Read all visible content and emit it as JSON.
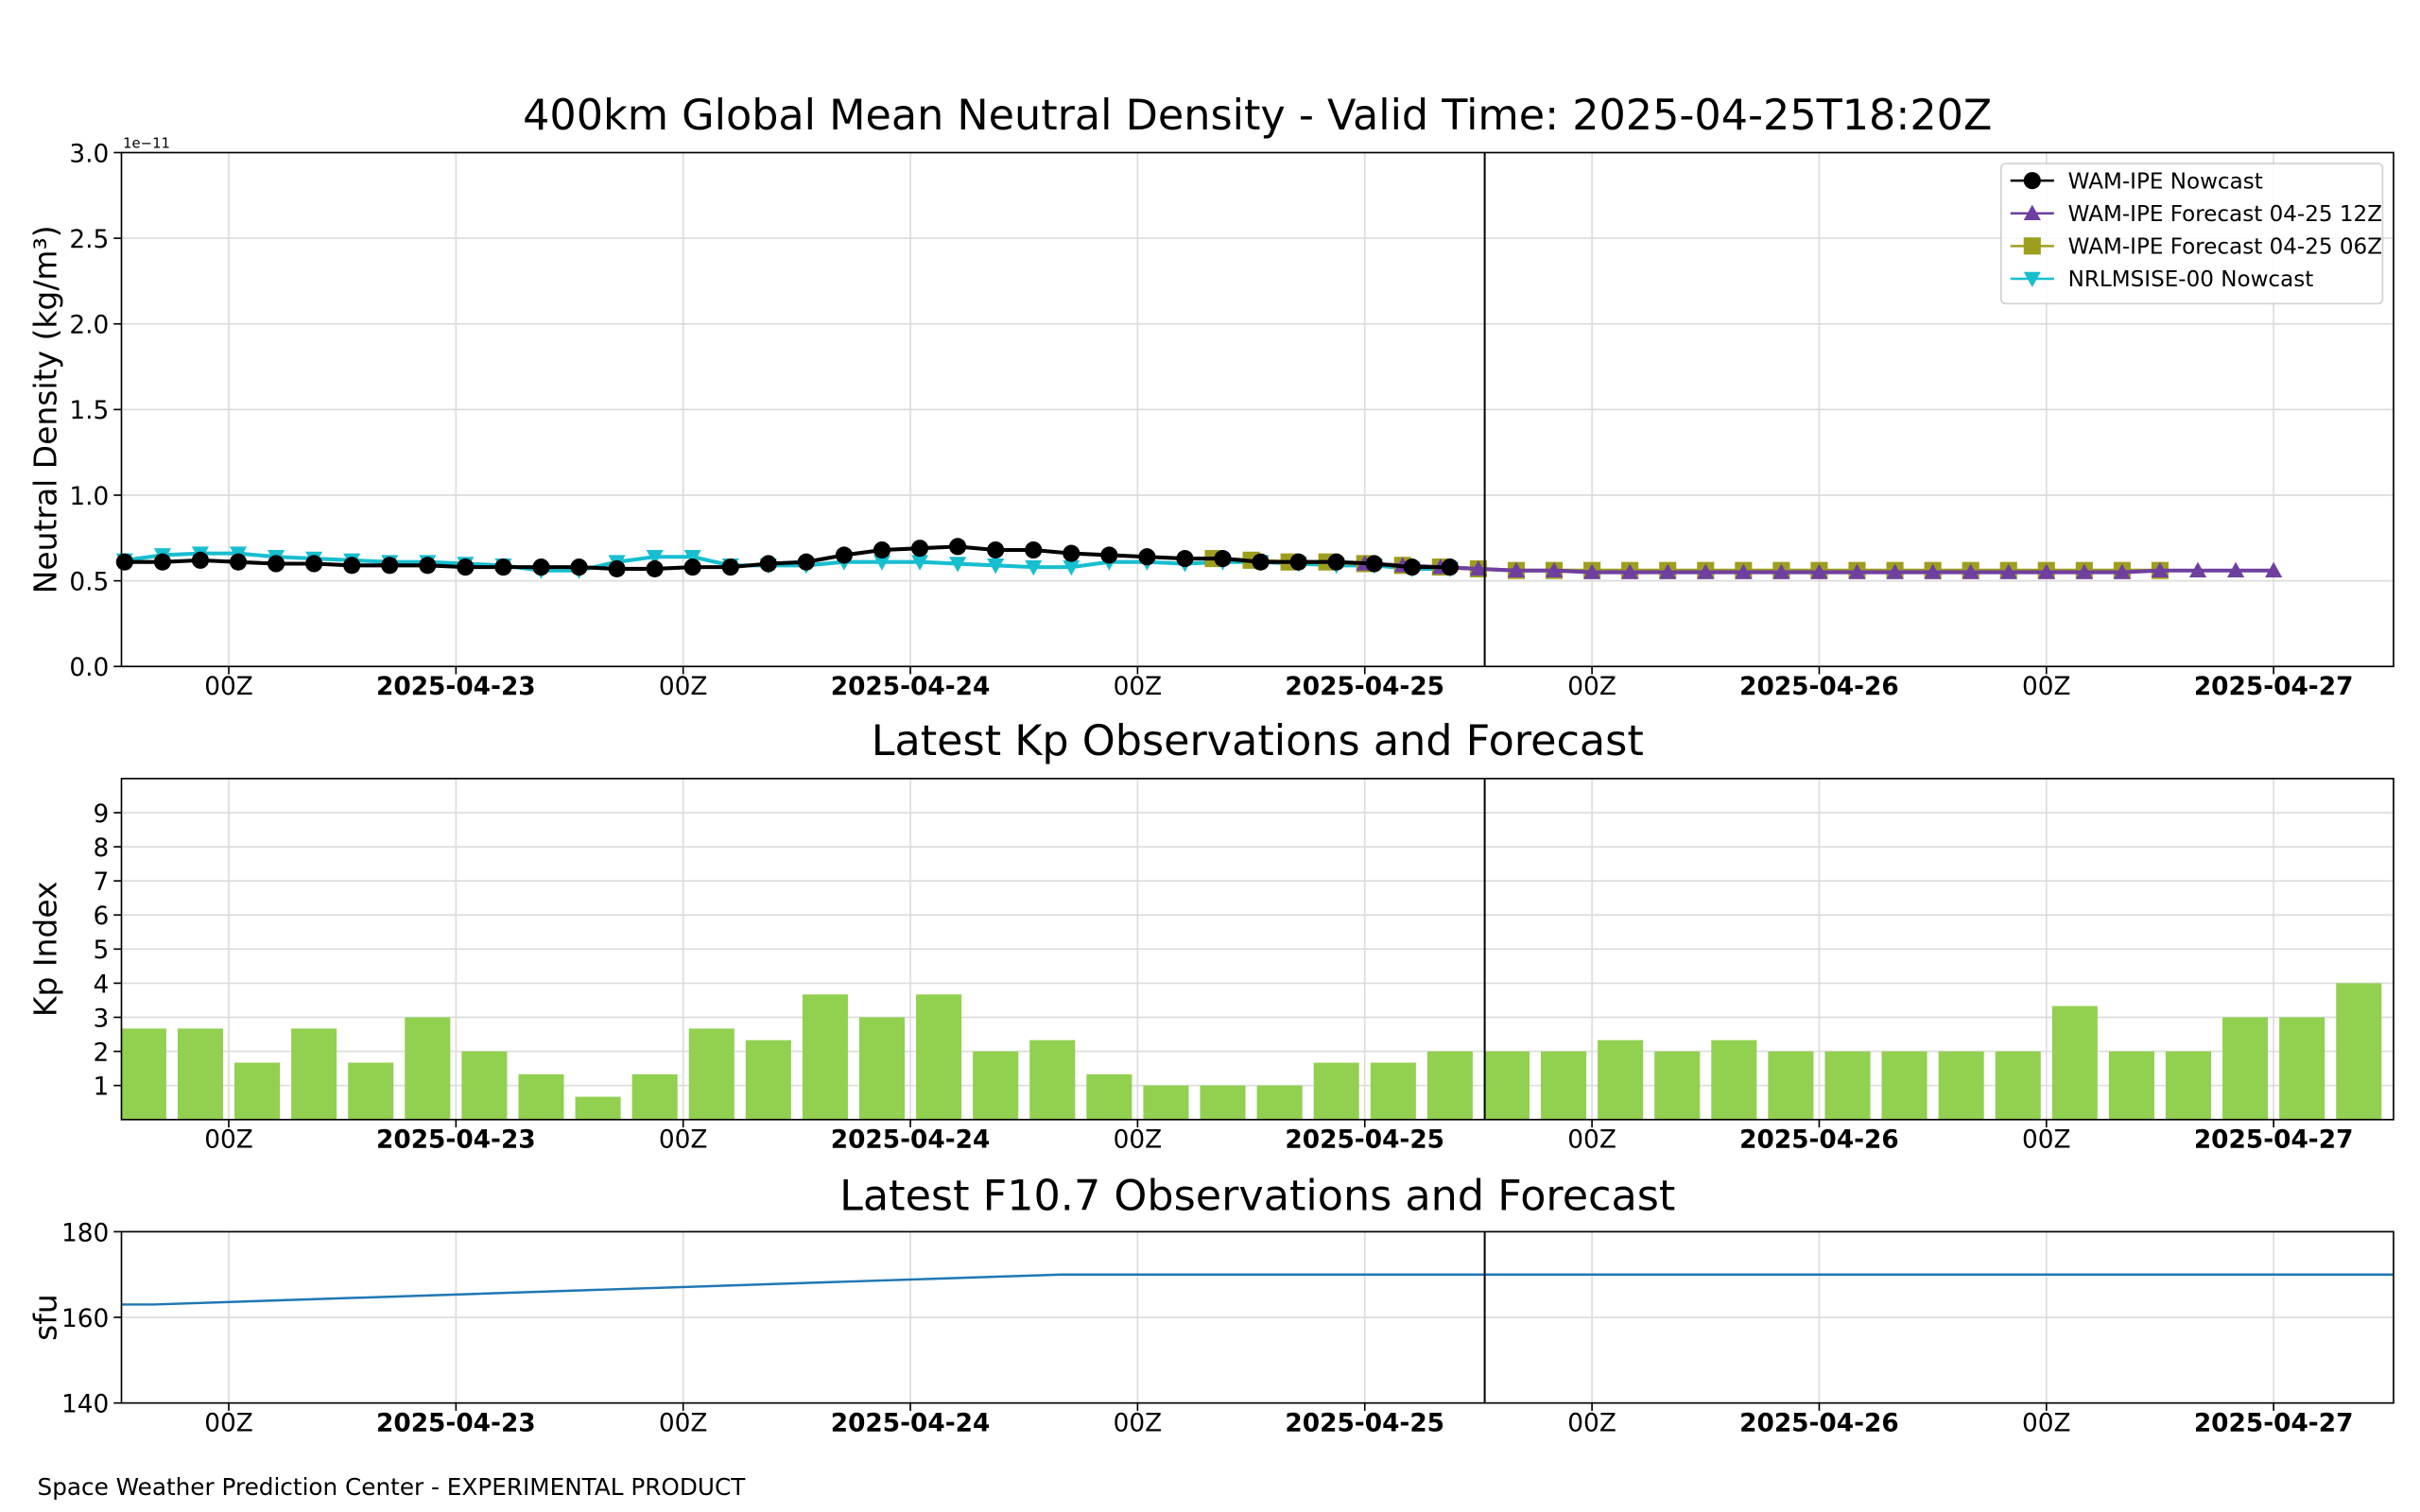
{
  "footer": "Space Weather Prediction Center - EXPERIMENTAL PRODUCT",
  "chart_data": [
    {
      "type": "line",
      "title": "400km Global Mean Neutral Density - Valid Time: 2025-04-25T18:20Z",
      "ylabel": "Neutral Density (kg/m³)",
      "offset_label": "1e−11",
      "xlim": [
        "2025-04-22T18:20Z",
        "2025-04-27T18:20Z"
      ],
      "xticks": [
        {
          "value": "2025-04-23T00:00Z",
          "label": "00Z"
        },
        {
          "value": "2025-04-23T12:00Z",
          "label": "2025-04-23"
        },
        {
          "value": "2025-04-24T00:00Z",
          "label": "00Z"
        },
        {
          "value": "2025-04-24T12:00Z",
          "label": "2025-04-24"
        },
        {
          "value": "2025-04-25T00:00Z",
          "label": "00Z"
        },
        {
          "value": "2025-04-25T12:00Z",
          "label": "2025-04-25"
        },
        {
          "value": "2025-04-26T00:00Z",
          "label": "00Z"
        },
        {
          "value": "2025-04-26T12:00Z",
          "label": "2025-04-26"
        },
        {
          "value": "2025-04-27T00:00Z",
          "label": "00Z"
        },
        {
          "value": "2025-04-27T12:00Z",
          "label": "2025-04-27"
        }
      ],
      "ylim": [
        0,
        3.0
      ],
      "yticks": [
        {
          "value": 0,
          "label": "0.0"
        },
        0.5,
        {
          "value": 1,
          "label": "1.0"
        },
        1.5,
        {
          "value": 2,
          "label": "2.0"
        },
        2.5,
        {
          "value": 3,
          "label": "3.0"
        }
      ],
      "grid": true,
      "legend": "upper right",
      "valid_time_line": "2025-04-25T18:20Z",
      "series": [
        {
          "name": "WAM-IPE Nowcast",
          "color": "#000000",
          "marker": "o",
          "x": [
            "2025-04-22T18:30Z",
            "2025-04-22T20:30Z",
            "2025-04-22T22:30Z",
            "2025-04-23T00:30Z",
            "2025-04-23T02:30Z",
            "2025-04-23T04:30Z",
            "2025-04-23T06:30Z",
            "2025-04-23T08:30Z",
            "2025-04-23T10:30Z",
            "2025-04-23T12:30Z",
            "2025-04-23T14:30Z",
            "2025-04-23T16:30Z",
            "2025-04-23T18:30Z",
            "2025-04-23T20:30Z",
            "2025-04-23T22:30Z",
            "2025-04-24T00:30Z",
            "2025-04-24T02:30Z",
            "2025-04-24T04:30Z",
            "2025-04-24T06:30Z",
            "2025-04-24T08:30Z",
            "2025-04-24T10:30Z",
            "2025-04-24T12:30Z",
            "2025-04-24T14:30Z",
            "2025-04-24T16:30Z",
            "2025-04-24T18:30Z",
            "2025-04-24T20:30Z",
            "2025-04-24T22:30Z",
            "2025-04-25T00:30Z",
            "2025-04-25T02:30Z",
            "2025-04-25T04:30Z",
            "2025-04-25T06:30Z",
            "2025-04-25T08:30Z",
            "2025-04-25T10:30Z",
            "2025-04-25T12:30Z",
            "2025-04-25T14:30Z",
            "2025-04-25T16:30Z"
          ],
          "values": [
            0.61,
            0.61,
            0.62,
            0.61,
            0.6,
            0.6,
            0.59,
            0.59,
            0.59,
            0.58,
            0.58,
            0.58,
            0.58,
            0.57,
            0.57,
            0.58,
            0.58,
            0.6,
            0.61,
            0.65,
            0.68,
            0.69,
            0.7,
            0.68,
            0.68,
            0.66,
            0.65,
            0.64,
            0.63,
            0.63,
            0.61,
            0.61,
            0.61,
            0.6,
            0.58,
            0.58
          ]
        },
        {
          "name": "WAM-IPE Forecast 04-25 12Z",
          "color": "#6f3fa0",
          "marker": "^",
          "x": [
            "2025-04-25T12:00Z",
            "2025-04-25T14:00Z",
            "2025-04-25T16:00Z",
            "2025-04-25T18:00Z",
            "2025-04-25T20:00Z",
            "2025-04-25T22:00Z",
            "2025-04-26T00:00Z",
            "2025-04-26T02:00Z",
            "2025-04-26T04:00Z",
            "2025-04-26T06:00Z",
            "2025-04-26T08:00Z",
            "2025-04-26T10:00Z",
            "2025-04-26T12:00Z",
            "2025-04-26T14:00Z",
            "2025-04-26T16:00Z",
            "2025-04-26T18:00Z",
            "2025-04-26T20:00Z",
            "2025-04-26T22:00Z",
            "2025-04-27T00:00Z",
            "2025-04-27T02:00Z",
            "2025-04-27T04:00Z",
            "2025-04-27T06:00Z",
            "2025-04-27T08:00Z",
            "2025-04-27T10:00Z",
            "2025-04-27T12:00Z"
          ],
          "values": [
            0.6,
            0.59,
            0.58,
            0.57,
            0.56,
            0.56,
            0.55,
            0.55,
            0.55,
            0.55,
            0.55,
            0.55,
            0.55,
            0.55,
            0.55,
            0.55,
            0.55,
            0.55,
            0.55,
            0.55,
            0.55,
            0.56,
            0.56,
            0.56,
            0.56
          ]
        },
        {
          "name": "WAM-IPE Forecast 04-25 06Z",
          "color": "#9e9e1e",
          "marker": "s",
          "x": [
            "2025-04-25T04:00Z",
            "2025-04-25T06:00Z",
            "2025-04-25T08:00Z",
            "2025-04-25T10:00Z",
            "2025-04-25T12:00Z",
            "2025-04-25T14:00Z",
            "2025-04-25T16:00Z",
            "2025-04-25T18:00Z",
            "2025-04-25T20:00Z",
            "2025-04-25T22:00Z",
            "2025-04-26T00:00Z",
            "2025-04-26T02:00Z",
            "2025-04-26T04:00Z",
            "2025-04-26T06:00Z",
            "2025-04-26T08:00Z",
            "2025-04-26T10:00Z",
            "2025-04-26T12:00Z",
            "2025-04-26T14:00Z",
            "2025-04-26T16:00Z",
            "2025-04-26T18:00Z",
            "2025-04-26T20:00Z",
            "2025-04-26T22:00Z",
            "2025-04-27T00:00Z",
            "2025-04-27T02:00Z",
            "2025-04-27T04:00Z",
            "2025-04-27T06:00Z"
          ],
          "values": [
            0.63,
            0.62,
            0.61,
            0.61,
            0.6,
            0.59,
            0.58,
            0.57,
            0.56,
            0.56,
            0.56,
            0.56,
            0.56,
            0.56,
            0.56,
            0.56,
            0.56,
            0.56,
            0.56,
            0.56,
            0.56,
            0.56,
            0.56,
            0.56,
            0.56,
            0.56
          ]
        },
        {
          "name": "NRLMSISE-00 Nowcast",
          "color": "#17becf",
          "marker": "v",
          "x": [
            "2025-04-22T18:30Z",
            "2025-04-22T20:30Z",
            "2025-04-22T22:30Z",
            "2025-04-23T00:30Z",
            "2025-04-23T02:30Z",
            "2025-04-23T04:30Z",
            "2025-04-23T06:30Z",
            "2025-04-23T08:30Z",
            "2025-04-23T10:30Z",
            "2025-04-23T12:30Z",
            "2025-04-23T14:30Z",
            "2025-04-23T16:30Z",
            "2025-04-23T18:30Z",
            "2025-04-23T20:30Z",
            "2025-04-23T22:30Z",
            "2025-04-24T00:30Z",
            "2025-04-24T02:30Z",
            "2025-04-24T04:30Z",
            "2025-04-24T06:30Z",
            "2025-04-24T08:30Z",
            "2025-04-24T10:30Z",
            "2025-04-24T12:30Z",
            "2025-04-24T14:30Z",
            "2025-04-24T16:30Z",
            "2025-04-24T18:30Z",
            "2025-04-24T20:30Z",
            "2025-04-24T22:30Z",
            "2025-04-25T00:30Z",
            "2025-04-25T02:30Z",
            "2025-04-25T04:30Z",
            "2025-04-25T06:30Z",
            "2025-04-25T08:30Z",
            "2025-04-25T10:30Z",
            "2025-04-25T12:30Z",
            "2025-04-25T14:30Z",
            "2025-04-25T16:30Z"
          ],
          "values": [
            0.62,
            0.65,
            0.66,
            0.66,
            0.64,
            0.63,
            0.62,
            0.61,
            0.61,
            0.6,
            0.59,
            0.56,
            0.56,
            0.61,
            0.64,
            0.64,
            0.59,
            0.59,
            0.59,
            0.61,
            0.61,
            0.61,
            0.6,
            0.59,
            0.58,
            0.58,
            0.61,
            0.61,
            0.6,
            0.61,
            0.61,
            0.6,
            0.59,
            0.59,
            0.57,
            0.57
          ]
        }
      ]
    },
    {
      "type": "bar",
      "title": "Latest Kp Observations and Forecast",
      "ylabel": "Kp Index",
      "color": "#92d050",
      "xlim": [
        "2025-04-22T18:20Z",
        "2025-04-27T18:20Z"
      ],
      "xticks": [
        {
          "value": "2025-04-23T00:00Z",
          "label": "00Z"
        },
        {
          "value": "2025-04-23T12:00Z",
          "label": "2025-04-23"
        },
        {
          "value": "2025-04-24T00:00Z",
          "label": "00Z"
        },
        {
          "value": "2025-04-24T12:00Z",
          "label": "2025-04-24"
        },
        {
          "value": "2025-04-25T00:00Z",
          "label": "00Z"
        },
        {
          "value": "2025-04-25T12:00Z",
          "label": "2025-04-25"
        },
        {
          "value": "2025-04-26T00:00Z",
          "label": "00Z"
        },
        {
          "value": "2025-04-26T12:00Z",
          "label": "2025-04-26"
        },
        {
          "value": "2025-04-27T00:00Z",
          "label": "00Z"
        },
        {
          "value": "2025-04-27T12:00Z",
          "label": "2025-04-27"
        }
      ],
      "ylim": [
        0,
        10
      ],
      "yticks": [
        1,
        2,
        3,
        4,
        5,
        6,
        7,
        8,
        9
      ],
      "grid": true,
      "valid_time_line": "2025-04-25T18:20Z",
      "x": [
        "2025-04-22T19:30Z",
        "2025-04-22T22:30Z",
        "2025-04-23T01:30Z",
        "2025-04-23T04:30Z",
        "2025-04-23T07:30Z",
        "2025-04-23T10:30Z",
        "2025-04-23T13:30Z",
        "2025-04-23T16:30Z",
        "2025-04-23T19:30Z",
        "2025-04-23T22:30Z",
        "2025-04-24T01:30Z",
        "2025-04-24T04:30Z",
        "2025-04-24T07:30Z",
        "2025-04-24T10:30Z",
        "2025-04-24T13:30Z",
        "2025-04-24T16:30Z",
        "2025-04-24T19:30Z",
        "2025-04-24T22:30Z",
        "2025-04-25T01:30Z",
        "2025-04-25T04:30Z",
        "2025-04-25T07:30Z",
        "2025-04-25T10:30Z",
        "2025-04-25T13:30Z",
        "2025-04-25T16:30Z",
        "2025-04-25T19:30Z",
        "2025-04-25T22:30Z",
        "2025-04-26T01:30Z",
        "2025-04-26T04:30Z",
        "2025-04-26T07:30Z",
        "2025-04-26T10:30Z",
        "2025-04-26T13:30Z",
        "2025-04-26T16:30Z",
        "2025-04-26T19:30Z",
        "2025-04-26T22:30Z",
        "2025-04-27T01:30Z",
        "2025-04-27T04:30Z",
        "2025-04-27T07:30Z",
        "2025-04-27T10:30Z",
        "2025-04-27T13:30Z",
        "2025-04-27T16:30Z"
      ],
      "values": [
        2.67,
        2.67,
        1.67,
        2.67,
        1.67,
        3.0,
        2.0,
        1.33,
        0.67,
        1.33,
        2.67,
        2.33,
        3.67,
        3.0,
        3.67,
        2.0,
        2.33,
        1.33,
        1.0,
        1.0,
        1.0,
        1.67,
        1.67,
        2.0,
        2.0,
        2.0,
        2.33,
        2.0,
        2.33,
        2.0,
        2.0,
        2.0,
        2.0,
        2.0,
        3.33,
        2.0,
        2.0,
        3.0,
        3.0,
        4.0
      ]
    },
    {
      "type": "line",
      "title": "Latest F10.7 Observations and Forecast",
      "ylabel": "sfu",
      "xlim": [
        "2025-04-22T18:20Z",
        "2025-04-27T18:20Z"
      ],
      "xticks": [
        {
          "value": "2025-04-23T00:00Z",
          "label": "00Z"
        },
        {
          "value": "2025-04-23T12:00Z",
          "label": "2025-04-23"
        },
        {
          "value": "2025-04-24T00:00Z",
          "label": "00Z"
        },
        {
          "value": "2025-04-24T12:00Z",
          "label": "2025-04-24"
        },
        {
          "value": "2025-04-25T00:00Z",
          "label": "00Z"
        },
        {
          "value": "2025-04-25T12:00Z",
          "label": "2025-04-25"
        },
        {
          "value": "2025-04-26T00:00Z",
          "label": "00Z"
        },
        {
          "value": "2025-04-26T12:00Z",
          "label": "2025-04-26"
        },
        {
          "value": "2025-04-27T00:00Z",
          "label": "00Z"
        },
        {
          "value": "2025-04-27T12:00Z",
          "label": "2025-04-27"
        }
      ],
      "ylim": [
        140,
        180
      ],
      "yticks": [
        140,
        160,
        180
      ],
      "grid": true,
      "valid_time_line": "2025-04-25T18:20Z",
      "series": [
        {
          "color": "#1f77b4",
          "x": [
            "2025-04-22T18:20Z",
            "2025-04-22T20:00Z",
            "2025-04-24T20:00Z",
            "2025-04-27T18:20Z"
          ],
          "values": [
            163,
            163,
            170,
            170
          ]
        }
      ]
    }
  ]
}
